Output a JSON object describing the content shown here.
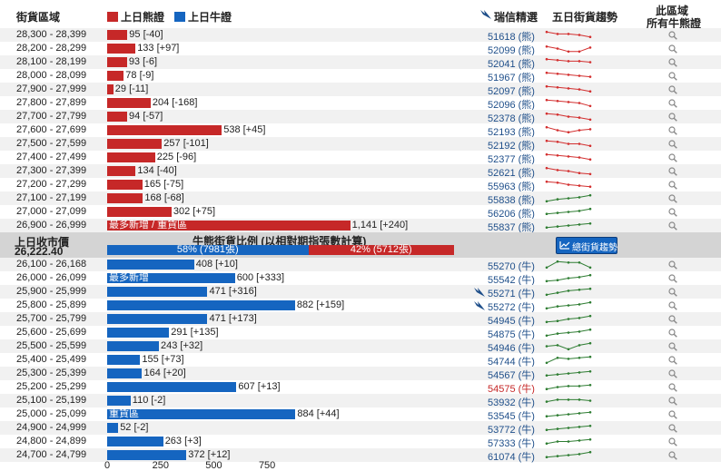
{
  "header": {
    "col_range": "街貨區域",
    "legend_bear": "上日熊證",
    "legend_bull": "上日牛證",
    "col_issuer": "瑞信精選",
    "col_trend": "五日街貨趨勢",
    "col_all_line1": "此區域",
    "col_all_line2": "所有牛熊證"
  },
  "colors": {
    "bear": "#c62828",
    "bull": "#1565c0",
    "code": "#1f4f8a",
    "spark_red": "#d32f2f",
    "spark_green": "#2e7d32"
  },
  "middle": {
    "close_label": "上日收市價",
    "close_value": "26,222.40",
    "ratio_title": "牛熊街貨比例 (以相對期指張數計算)",
    "bull_pct": 58,
    "bull_text": "58% (7981張)",
    "bear_text": "42% (5712張)",
    "trend_button": "總街貨趨勢"
  },
  "chart_data": {
    "type": "bar",
    "orientation": "horizontal",
    "xticks": [
      0,
      250,
      500,
      750
    ],
    "bear_rows": [
      {
        "range": "28,300 - 28,399",
        "value": 95,
        "label": "95 [-40]",
        "code": "51618 (熊)",
        "spark": [
          0.8,
          0.6,
          0.6,
          0.5,
          0.3
        ]
      },
      {
        "range": "28,200 - 28,299",
        "value": 133,
        "label": "133 [+97]",
        "code": "52099 (熊)",
        "spark": [
          0.7,
          0.5,
          0.2,
          0.2,
          0.6
        ]
      },
      {
        "range": "28,100 - 28,199",
        "value": 93,
        "label": "93 [-6]",
        "code": "52041 (熊)",
        "spark": [
          0.8,
          0.7,
          0.6,
          0.6,
          0.5
        ]
      },
      {
        "range": "28,000 - 28,099",
        "value": 78,
        "label": "78 [-9]",
        "code": "51967 (熊)",
        "spark": [
          0.8,
          0.7,
          0.6,
          0.5,
          0.4
        ]
      },
      {
        "range": "27,900 - 27,999",
        "value": 29,
        "label": "29 [-11]",
        "code": "52097 (熊)",
        "spark": [
          0.8,
          0.7,
          0.6,
          0.5,
          0.3
        ]
      },
      {
        "range": "27,800 - 27,899",
        "value": 204,
        "label": "204 [-168]",
        "code": "52096 (熊)",
        "spark": [
          0.8,
          0.7,
          0.6,
          0.5,
          0.2
        ]
      },
      {
        "range": "27,700 - 27,799",
        "value": 94,
        "label": "94 [-57]",
        "code": "52378 (熊)",
        "spark": [
          0.8,
          0.7,
          0.5,
          0.4,
          0.2
        ]
      },
      {
        "range": "27,600 - 27,699",
        "value": 538,
        "label": "538 [+45]",
        "code": "52193 (熊)",
        "spark": [
          0.8,
          0.5,
          0.3,
          0.5,
          0.6
        ]
      },
      {
        "range": "27,500 - 27,599",
        "value": 257,
        "label": "257 [-101]",
        "code": "52192 (熊)",
        "spark": [
          0.8,
          0.7,
          0.5,
          0.5,
          0.3
        ]
      },
      {
        "range": "27,400 - 27,499",
        "value": 225,
        "label": "225 [-96]",
        "code": "52377 (熊)",
        "spark": [
          0.8,
          0.7,
          0.6,
          0.5,
          0.3
        ]
      },
      {
        "range": "27,300 - 27,399",
        "value": 134,
        "label": "134 [-40]",
        "code": "52621 (熊)",
        "spark": [
          0.8,
          0.6,
          0.5,
          0.3,
          0.2
        ]
      },
      {
        "range": "27,200 - 27,299",
        "value": 165,
        "label": "165 [-75]",
        "code": "55963 (熊)",
        "spark": [
          0.8,
          0.7,
          0.5,
          0.4,
          0.3
        ]
      },
      {
        "range": "27,100 - 27,199",
        "value": 168,
        "label": "168 [-68]",
        "code": "55838 (熊)",
        "spark": [
          0.2,
          0.4,
          0.5,
          0.6,
          0.8
        ]
      },
      {
        "range": "27,000 - 27,099",
        "value": 302,
        "label": "302 [+75]",
        "code": "56206 (熊)",
        "spark": [
          0.3,
          0.4,
          0.5,
          0.6,
          0.8
        ]
      },
      {
        "range": "26,900 - 26,999",
        "value": 1141,
        "label": "1,141 [+240]",
        "code": "55837 (熊)",
        "tag": "最多新增 / 重貨區",
        "spark": [
          0.3,
          0.4,
          0.5,
          0.6,
          0.7
        ]
      }
    ],
    "bull_rows": [
      {
        "range": "26,100 - 26,168",
        "value": 408,
        "label": "408 [+10]",
        "code": "55270 (牛)",
        "spark": [
          0.2,
          0.8,
          0.7,
          0.7,
          0.2
        ]
      },
      {
        "range": "26,000 - 26,099",
        "value": 600,
        "label": "600 [+333]",
        "code": "55542 (牛)",
        "tag": "最多新增",
        "spark": [
          0.2,
          0.3,
          0.5,
          0.6,
          0.8
        ]
      },
      {
        "range": "25,900 - 25,999",
        "value": 471,
        "label": "471 [+316]",
        "code": "55271 (牛)",
        "spark": [
          0.2,
          0.4,
          0.6,
          0.7,
          0.8
        ]
      },
      {
        "range": "25,800 - 25,899",
        "value": 882,
        "label": "882 [+159]",
        "code": "55272 (牛)",
        "spark": [
          0.2,
          0.4,
          0.5,
          0.6,
          0.8
        ]
      },
      {
        "range": "25,700 - 25,799",
        "value": 471,
        "label": "471 [+173]",
        "code": "54945 (牛)",
        "spark": [
          0.2,
          0.3,
          0.5,
          0.6,
          0.8
        ]
      },
      {
        "range": "25,600 - 25,699",
        "value": 291,
        "label": "291 [+135]",
        "code": "54875 (牛)",
        "spark": [
          0.2,
          0.4,
          0.5,
          0.6,
          0.8
        ]
      },
      {
        "range": "25,500 - 25,599",
        "value": 243,
        "label": "243 [+32]",
        "code": "54946 (牛)",
        "spark": [
          0.5,
          0.6,
          0.2,
          0.6,
          0.8
        ]
      },
      {
        "range": "25,400 - 25,499",
        "value": 155,
        "label": "155 [+73]",
        "code": "54744 (牛)",
        "spark": [
          0.2,
          0.7,
          0.6,
          0.7,
          0.8
        ]
      },
      {
        "range": "25,300 - 25,399",
        "value": 164,
        "label": "164 [+20]",
        "code": "54567 (牛)",
        "spark": [
          0.3,
          0.4,
          0.5,
          0.6,
          0.7
        ]
      },
      {
        "range": "25,200 - 25,299",
        "value": 607,
        "label": "607 [+13]",
        "code": "54575 (牛)",
        "highlight": true,
        "spark": [
          0.3,
          0.5,
          0.6,
          0.6,
          0.7
        ]
      },
      {
        "range": "25,100 - 25,199",
        "value": 110,
        "label": "110 [-2]",
        "code": "53932 (牛)",
        "spark": [
          0.4,
          0.6,
          0.6,
          0.6,
          0.5
        ]
      },
      {
        "range": "25,000 - 25,099",
        "value": 884,
        "label": "884 [+44]",
        "code": "53545 (牛)",
        "tag": "重貨區",
        "spark": [
          0.3,
          0.4,
          0.5,
          0.6,
          0.7
        ]
      },
      {
        "range": "24,900 - 24,999",
        "value": 52,
        "label": "52 [-2]",
        "code": "53772 (牛)",
        "spark": [
          0.3,
          0.4,
          0.5,
          0.6,
          0.7
        ]
      },
      {
        "range": "24,800 - 24,899",
        "value": 263,
        "label": "263 [+3]",
        "code": "57333 (牛)",
        "spark": [
          0.3,
          0.5,
          0.5,
          0.6,
          0.7
        ]
      },
      {
        "range": "24,700 - 24,799",
        "value": 372,
        "label": "372 [+12]",
        "code": "61074 (牛)",
        "spark": [
          0.3,
          0.4,
          0.5,
          0.6,
          0.8
        ]
      }
    ]
  }
}
